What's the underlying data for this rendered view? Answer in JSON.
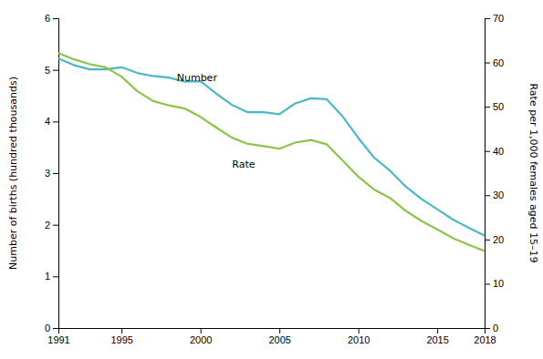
{
  "chart_data": {
    "type": "line",
    "x": [
      1991,
      1992,
      1993,
      1994,
      1995,
      1996,
      1997,
      1998,
      1999,
      2000,
      2001,
      2002,
      2003,
      2004,
      2005,
      2006,
      2007,
      2008,
      2009,
      2010,
      2011,
      2012,
      2013,
      2014,
      2015,
      2016,
      2017,
      2018
    ],
    "series": [
      {
        "color": "#4BB8C5",
        "values": [
          5.22,
          5.09,
          5.01,
          5.01,
          5.05,
          4.94,
          4.88,
          4.85,
          4.77,
          4.78,
          4.54,
          4.32,
          4.18,
          4.18,
          4.14,
          4.35,
          4.45,
          4.43,
          4.1,
          3.68,
          3.3,
          3.05,
          2.74,
          2.5,
          2.3,
          2.1,
          1.94,
          1.79
        ]
      },
      {
        "color": "#8CC44B",
        "axis": "y2",
        "values": [
          62.1,
          60.7,
          59.6,
          58.9,
          56.8,
          53.5,
          51.3,
          50.3,
          49.6,
          47.7,
          45.3,
          43.0,
          41.6,
          41.1,
          40.5,
          41.9,
          42.5,
          41.5,
          37.9,
          34.2,
          31.3,
          29.4,
          26.5,
          24.2,
          22.3,
          20.3,
          18.8,
          17.4
        ]
      }
    ],
    "ylabel": "Number of births (hundred thousands)",
    "y2label": "Rate per 1,000 females aged 15–19",
    "xlim": [
      1991,
      2018
    ],
    "xticks": [
      1991,
      1995,
      2000,
      2005,
      2010,
      2015,
      2018
    ],
    "ylim": [
      0,
      6
    ],
    "yticks": [
      0,
      1,
      2,
      3,
      4,
      5,
      6
    ],
    "y2lim": [
      0,
      70
    ],
    "y2ticks": [
      0,
      10,
      20,
      30,
      40,
      50,
      60,
      70
    ],
    "annotations": [
      {
        "text": "Number",
        "x": 1998.5,
        "y": 4.78
      },
      {
        "text": "Rate",
        "x": 2002.0,
        "y": 3.1
      }
    ],
    "grid": false
  }
}
